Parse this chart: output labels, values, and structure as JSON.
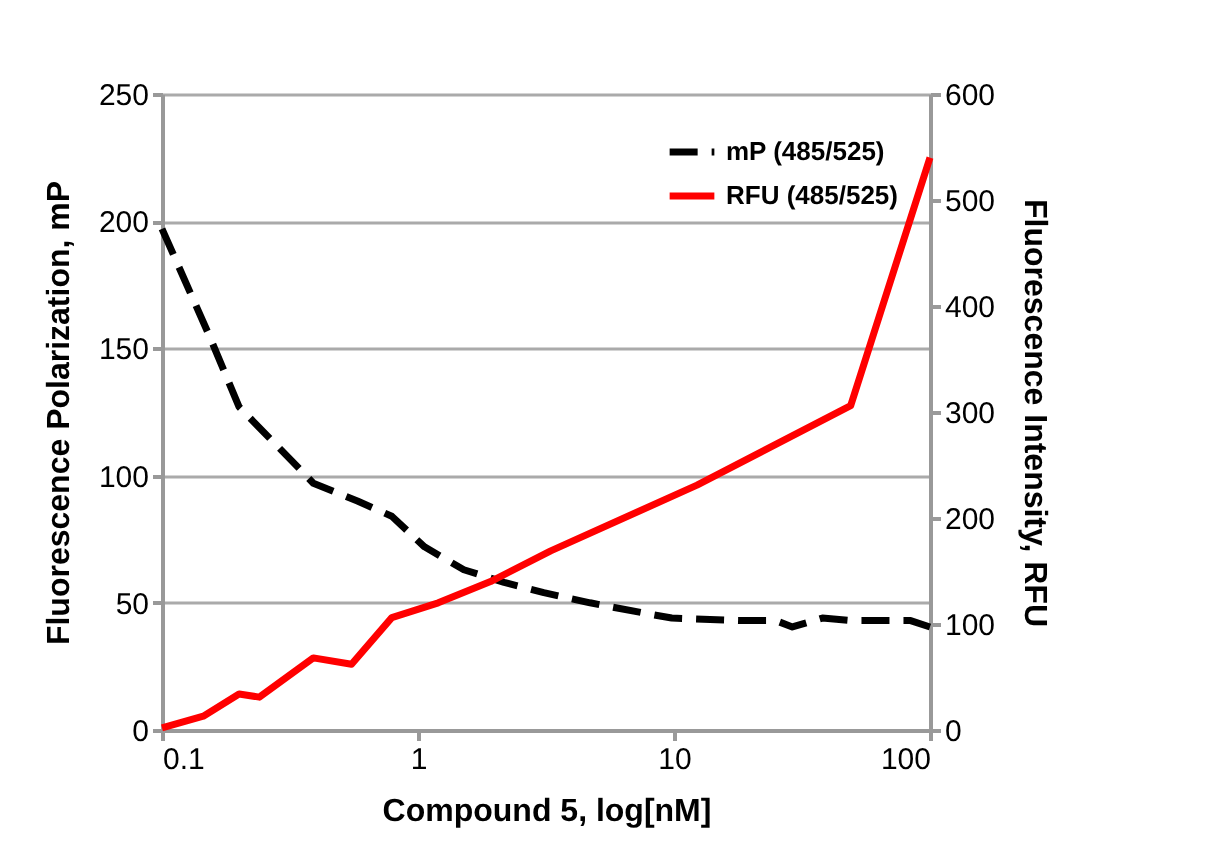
{
  "chart_data": {
    "type": "line",
    "xlabel": "Compound 5, log[nM]",
    "ylabel": "Fluorescence Polarization, mP",
    "y2label": "Fluorescence Intensity, RFU",
    "log": "x",
    "xlim": [
      0.1,
      100
    ],
    "xticks": [
      0.1,
      1,
      10,
      100
    ],
    "ylim": [
      0,
      250
    ],
    "yticks": [
      0,
      50,
      100,
      150,
      200,
      250
    ],
    "y2lim": [
      0,
      600
    ],
    "y2ticks": [
      0,
      100,
      200,
      300,
      400,
      500,
      600
    ],
    "grid": "y",
    "legend": "top right",
    "marker": "none",
    "series": [
      {
        "name": "mP (485/525)",
        "color": "#000000",
        "line_style": "dashed",
        "x": [
          0.1,
          0.153,
          0.2,
          0.32,
          0.39,
          0.58,
          0.79,
          1.06,
          1.51,
          2.17,
          3.1,
          4.7,
          7.6,
          9.8,
          17.8,
          25,
          29,
          38,
          49,
          66,
          84,
          100
        ],
        "values": [
          197,
          155,
          127,
          106,
          97,
          90,
          84,
          72,
          63,
          58,
          54,
          50,
          46,
          44,
          43,
          43,
          40.5,
          44,
          43,
          43,
          43,
          40.5
        ]
      },
      {
        "name": "RFU (485/525)",
        "color": "#ff0000",
        "line_style": "solid",
        "axis": "y2",
        "x": [
          0.1,
          0.145,
          0.2,
          0.24,
          0.39,
          0.55,
          0.79,
          1.2,
          1.92,
          3.3,
          12.3,
          49,
          100
        ],
        "values": [
          2,
          13,
          34,
          31,
          68,
          62,
          106,
          120,
          140,
          169,
          231,
          306,
          540
        ]
      }
    ]
  }
}
